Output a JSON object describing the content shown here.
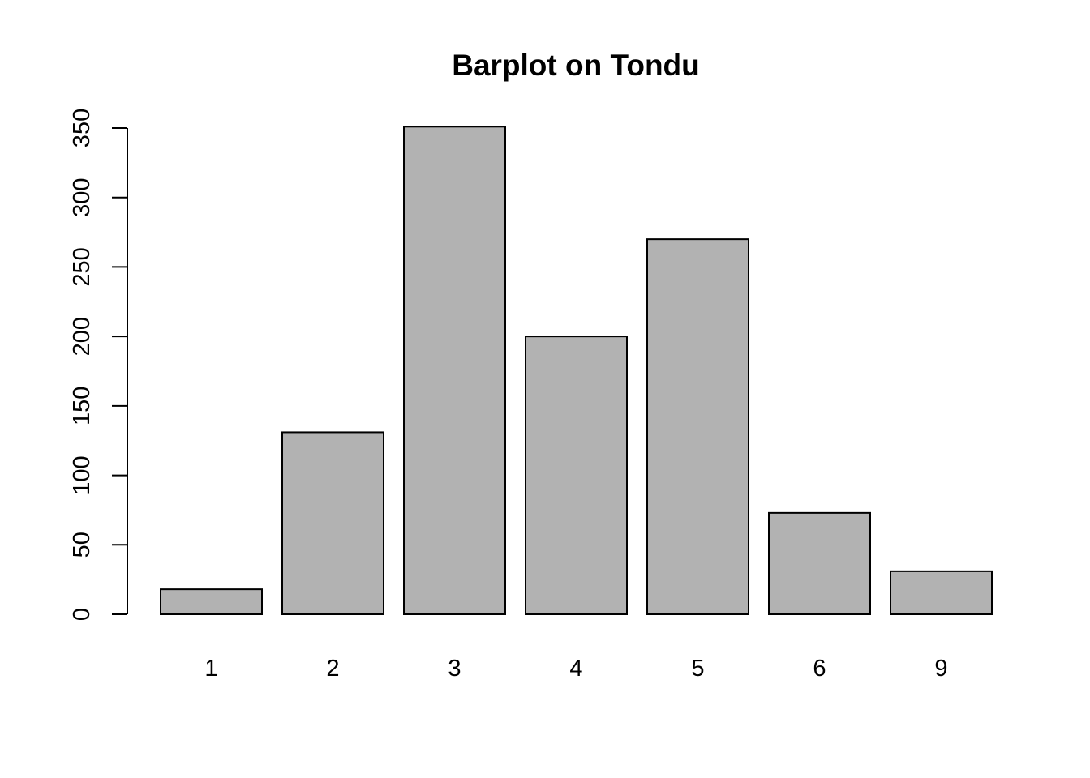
{
  "chart_data": {
    "type": "bar",
    "title": "Barplot on Tondu",
    "xlabel": "",
    "ylabel": "",
    "categories": [
      "1",
      "2",
      "3",
      "4",
      "5",
      "6",
      "9"
    ],
    "values": [
      18,
      131,
      351,
      200,
      270,
      73,
      31
    ],
    "yticks": [
      0,
      50,
      100,
      150,
      200,
      250,
      300,
      350
    ],
    "ylim": [
      0,
      350
    ],
    "grid": false,
    "bar_color": "#b2b2b2",
    "border_color": "#000000"
  }
}
